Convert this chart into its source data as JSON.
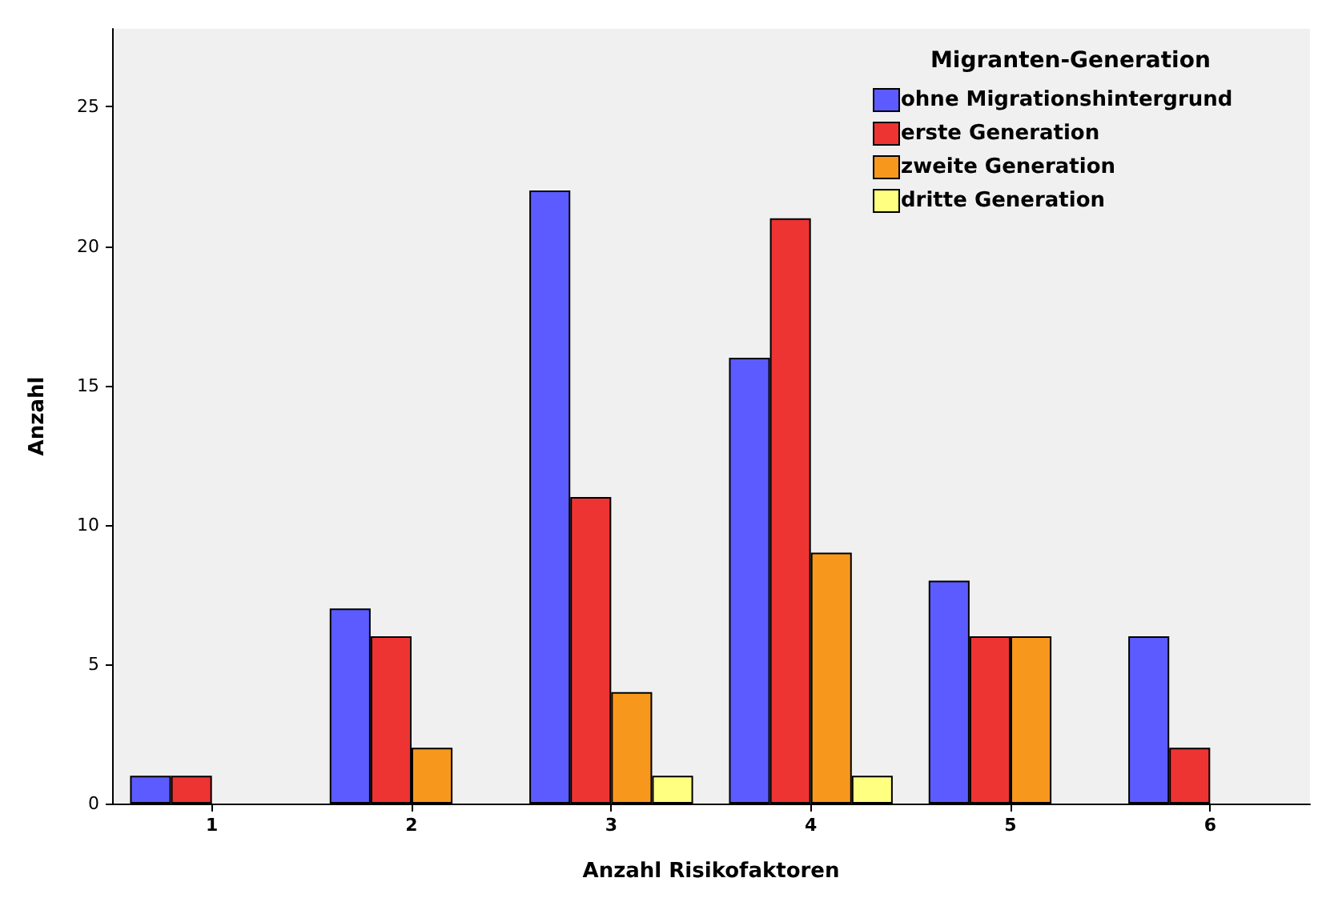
{
  "chart_data": {
    "type": "bar",
    "xlabel": "Anzahl Risikofaktoren",
    "ylabel": "Anzahl",
    "legend_title": "Migranten-Generation",
    "categories": [
      "1",
      "2",
      "3",
      "4",
      "5",
      "6"
    ],
    "series": [
      {
        "name": "ohne Migrationshintergrund",
        "color": "#5b5bff",
        "values": [
          1,
          7,
          22,
          16,
          8,
          6
        ]
      },
      {
        "name": "erste Generation",
        "color": "#ee3333",
        "values": [
          1,
          6,
          11,
          21,
          6,
          2
        ]
      },
      {
        "name": "zweite Generation",
        "color": "#f7981d",
        "values": [
          null,
          2,
          4,
          9,
          6,
          null
        ]
      },
      {
        "name": "dritte Generation",
        "color": "#ffff80",
        "values": [
          null,
          null,
          1,
          1,
          null,
          null
        ]
      }
    ],
    "ylim": [
      0,
      27.8
    ],
    "yticks": [
      0,
      5,
      10,
      15,
      20,
      25
    ],
    "grid": false,
    "legend": "top right"
  }
}
